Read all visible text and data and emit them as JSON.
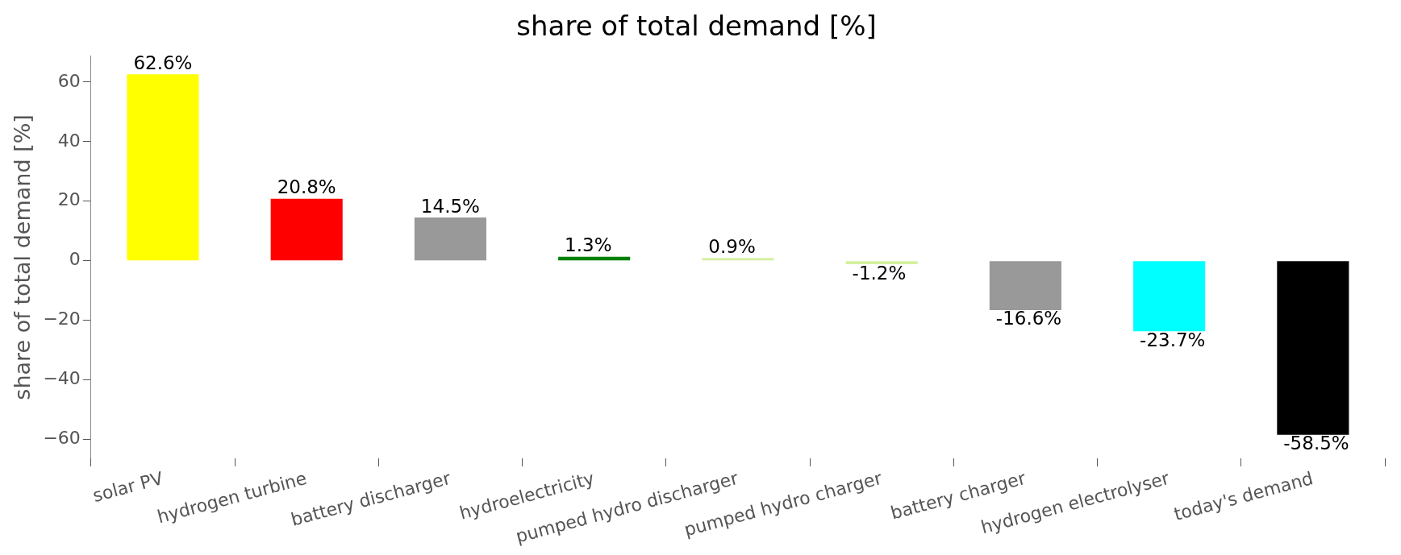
{
  "chart_data": {
    "type": "bar",
    "title": "share of total demand [%]",
    "ylabel": "share of total demand [%]",
    "categories": [
      "solar PV",
      "hydrogen turbine",
      "battery discharger",
      "hydroelectricity",
      "pumped hydro discharger",
      "pumped hydro charger",
      "battery charger",
      "hydrogen electrolyser",
      "today's demand"
    ],
    "values": [
      62.6,
      20.8,
      14.5,
      1.3,
      0.9,
      -1.2,
      -16.6,
      -23.7,
      -58.5
    ],
    "value_labels": [
      "62.6%",
      "20.8%",
      "14.5%",
      "1.3%",
      "0.9%",
      "-1.2%",
      "-16.6%",
      "-23.7%",
      "-58.5%"
    ],
    "colors": [
      "#ffff00",
      "#ff0000",
      "#999999",
      "#008000",
      "#d4f0a0",
      "#d4f0a0",
      "#999999",
      "#00ffff",
      "#000000"
    ],
    "ylim": [
      -66.4,
      68.7
    ],
    "yticks": [
      -60,
      -40,
      -20,
      0,
      20,
      40,
      60
    ],
    "grid": false,
    "legend": false
  }
}
